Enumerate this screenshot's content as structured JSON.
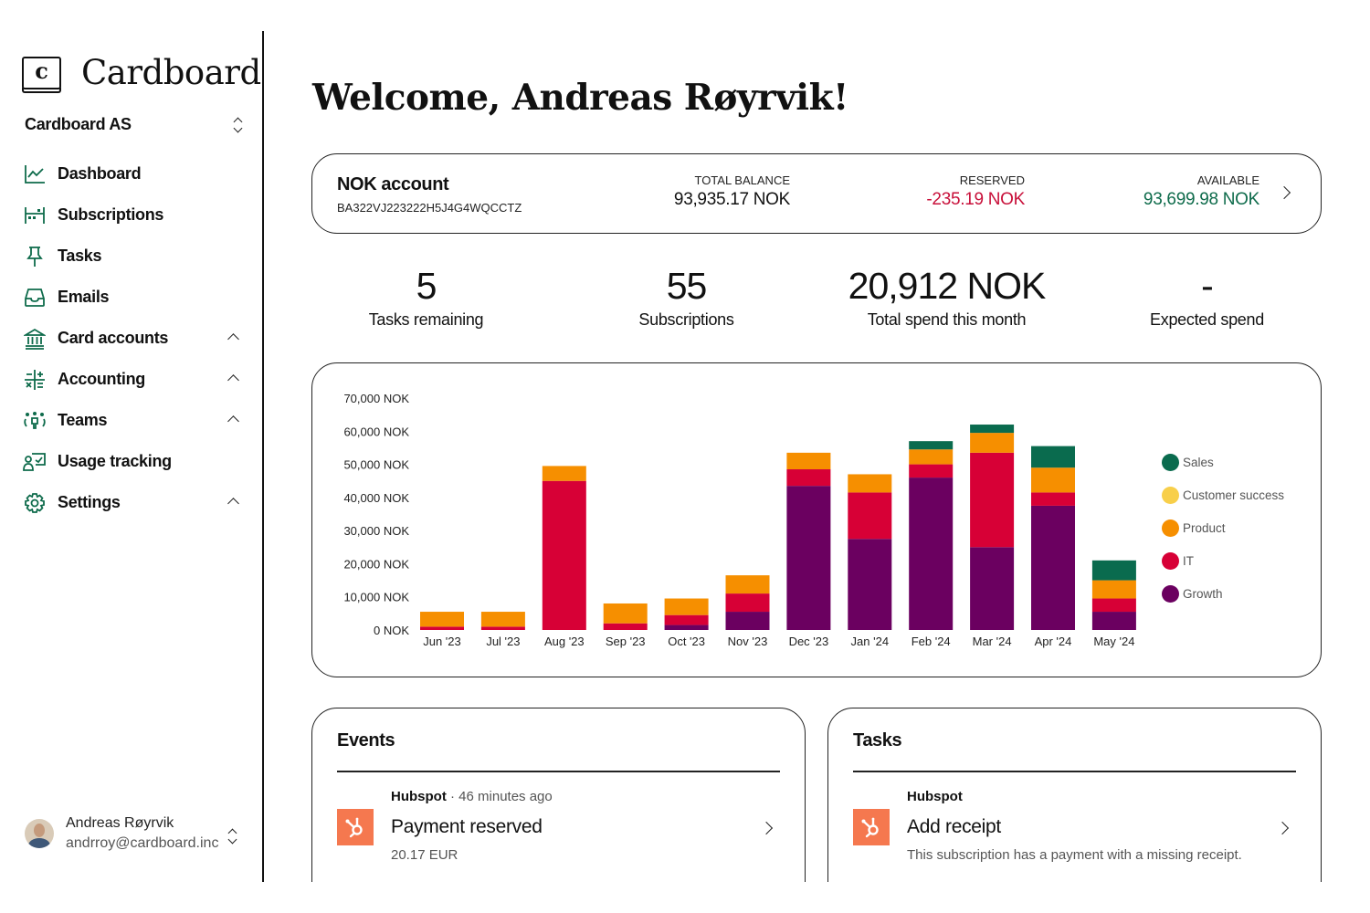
{
  "brand": {
    "name": "Cardboard",
    "logo_letter": "c"
  },
  "org": {
    "name": "Cardboard AS",
    "icon": "chevron-up-down-icon"
  },
  "sidebar": {
    "items": [
      {
        "label": "Dashboard",
        "icon": "chart-line-icon",
        "expandable": false
      },
      {
        "label": "Subscriptions",
        "icon": "calendar-icon",
        "expandable": false
      },
      {
        "label": "Tasks",
        "icon": "pin-icon",
        "expandable": false
      },
      {
        "label": "Emails",
        "icon": "inbox-icon",
        "expandable": false
      },
      {
        "label": "Card accounts",
        "icon": "bank-icon",
        "expandable": true
      },
      {
        "label": "Accounting",
        "icon": "calculator-icon",
        "expandable": true
      },
      {
        "label": "Teams",
        "icon": "team-icon",
        "expandable": true
      },
      {
        "label": "Usage tracking",
        "icon": "usage-tracking-icon",
        "expandable": false
      },
      {
        "label": "Settings",
        "icon": "gear-icon",
        "expandable": true
      }
    ]
  },
  "user": {
    "name": "Andreas Røyrvik",
    "email": "andrroy@cardboard.inc"
  },
  "welcome": "Welcome, Andreas Røyrvik!",
  "account": {
    "name": "NOK account",
    "iban": "BA322VJ223222H5J4G4WQCCTZ",
    "total_balance_label": "TOTAL BALANCE",
    "total_balance": "93,935.17 NOK",
    "reserved_label": "RESERVED",
    "reserved": "-235.19 NOK",
    "available_label": "AVAILABLE",
    "available": "93,699.98 NOK",
    "colors": {
      "reserved": "#c8103a",
      "available": "#0e6b4b"
    }
  },
  "stats": [
    {
      "value": "5",
      "label": "Tasks remaining"
    },
    {
      "value": "55",
      "label": "Subscriptions"
    },
    {
      "value": "20,912 NOK",
      "label": "Total spend this month"
    },
    {
      "value": "-",
      "label": "Expected spend"
    }
  ],
  "chart_data": {
    "type": "bar",
    "stacked": true,
    "title": "",
    "xlabel": "",
    "ylabel": "",
    "ylim": [
      0,
      70000
    ],
    "y_ticks": [
      0,
      10000,
      20000,
      30000,
      40000,
      50000,
      60000,
      70000
    ],
    "y_tick_labels": [
      "0 NOK",
      "10,000 NOK",
      "20,000 NOK",
      "30,000 NOK",
      "40,000 NOK",
      "50,000 NOK",
      "60,000 NOK",
      "70,000 NOK"
    ],
    "grid": false,
    "legend_position": "right",
    "categories": [
      "Jun '23",
      "Jul '23",
      "Aug '23",
      "Sep '23",
      "Oct '23",
      "Nov '23",
      "Dec '23",
      "Jan '24",
      "Feb '24",
      "Mar '24",
      "Apr '24",
      "May '24"
    ],
    "series": [
      {
        "name": "Growth",
        "color": "#6b0060",
        "values": [
          0,
          0,
          0,
          0,
          1500,
          5500,
          43500,
          27500,
          46000,
          25000,
          37500,
          5500
        ]
      },
      {
        "name": "IT",
        "color": "#d70036",
        "values": [
          1000,
          1000,
          45000,
          2000,
          3000,
          5500,
          5000,
          14000,
          4000,
          28500,
          4000,
          4000
        ]
      },
      {
        "name": "Product",
        "color": "#f68f00",
        "values": [
          4500,
          4500,
          4500,
          6000,
          5000,
          5500,
          5000,
          5500,
          4500,
          6000,
          7500,
          5500
        ]
      },
      {
        "name": "Customer success",
        "color": "#f8cf4a",
        "values": [
          0,
          0,
          0,
          0,
          0,
          0,
          0,
          0,
          0,
          0,
          0,
          0
        ]
      },
      {
        "name": "Sales",
        "color": "#0a6b4e",
        "values": [
          0,
          0,
          0,
          0,
          0,
          0,
          0,
          0,
          2500,
          2500,
          6500,
          6000
        ]
      }
    ],
    "legend_order": [
      "Sales",
      "Customer success",
      "Product",
      "IT",
      "Growth"
    ]
  },
  "events": {
    "title": "Events",
    "items": [
      {
        "source": "Hubspot",
        "separator": "·",
        "time": "46 minutes ago",
        "title": "Payment reserved",
        "subtitle": "20.17 EUR",
        "icon": "hubspot-icon"
      }
    ]
  },
  "tasks": {
    "title": "Tasks",
    "items": [
      {
        "source": "Hubspot",
        "title": "Add receipt",
        "subtitle": "This subscription has a payment with a missing receipt.",
        "icon": "hubspot-icon"
      }
    ]
  }
}
